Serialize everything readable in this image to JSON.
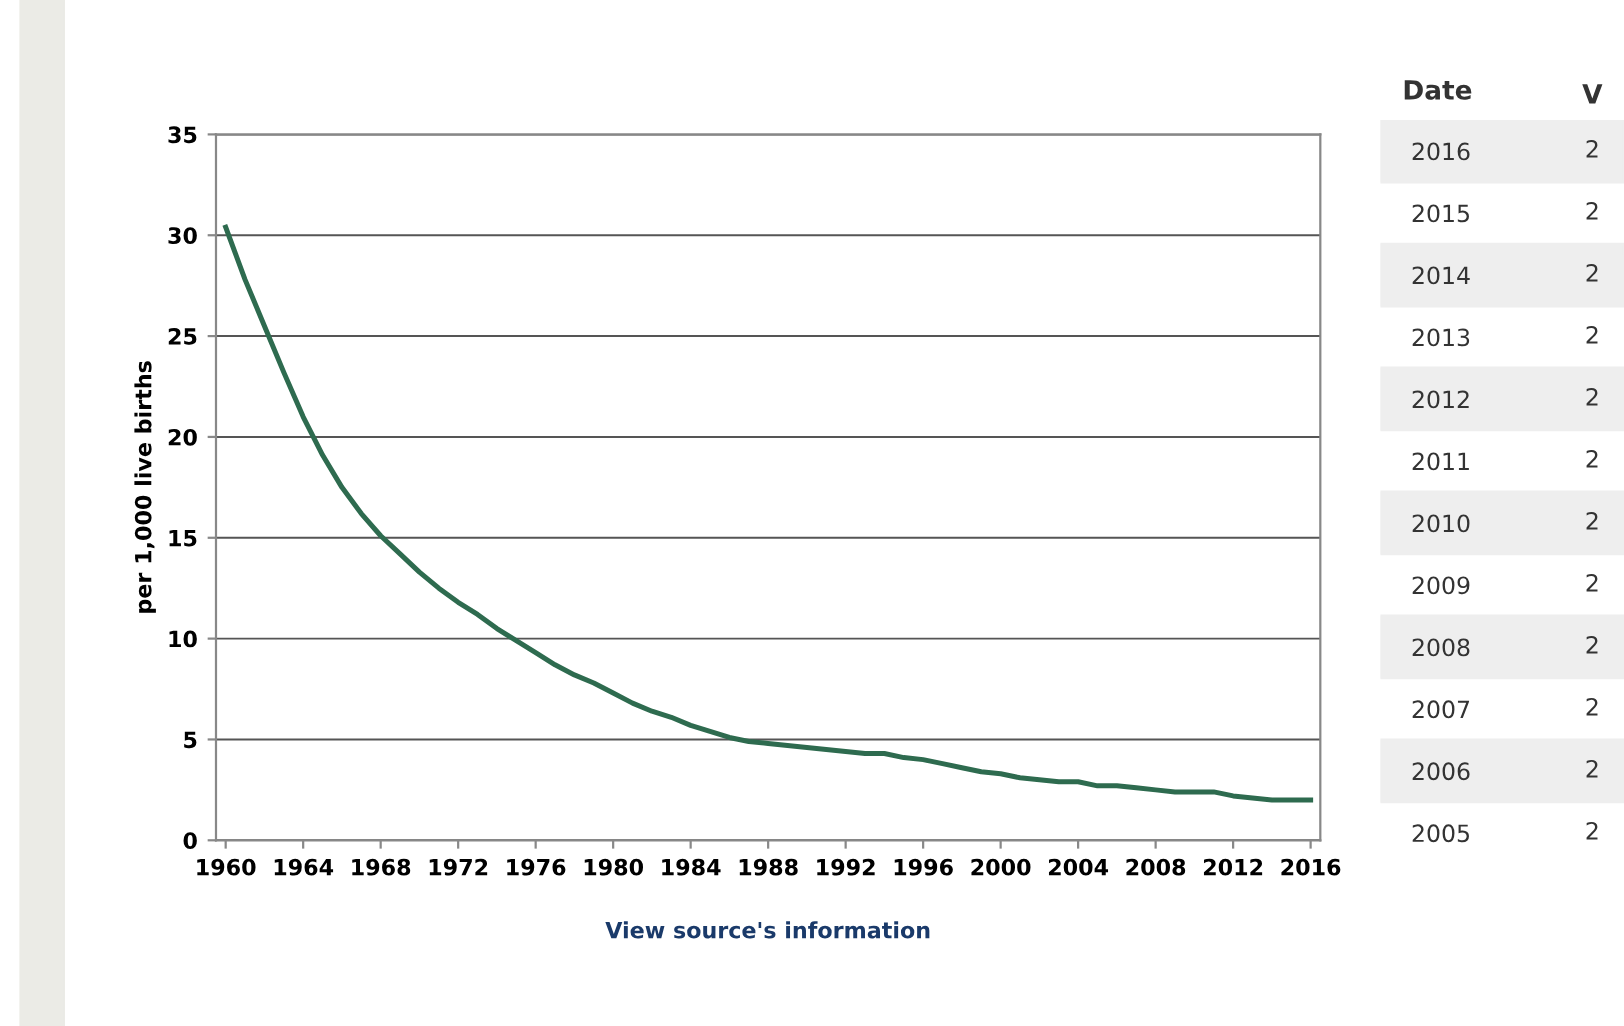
{
  "chart_data": [
    {
      "type": "line",
      "ylabel": "per 1,000 live births",
      "color": "#2e6b4f",
      "x": [
        1960,
        1961,
        1962,
        1963,
        1964,
        1965,
        1966,
        1967,
        1968,
        1969,
        1970,
        1971,
        1972,
        1973,
        1974,
        1975,
        1976,
        1977,
        1978,
        1979,
        1980,
        1981,
        1982,
        1983,
        1984,
        1985,
        1986,
        1987,
        1988,
        1989,
        1990,
        1991,
        1992,
        1993,
        1994,
        1995,
        1996,
        1997,
        1998,
        1999,
        2000,
        2001,
        2002,
        2003,
        2004,
        2005,
        2006,
        2007,
        2008,
        2009,
        2010,
        2011,
        2012,
        2013,
        2014,
        2015,
        2016
      ],
      "values": [
        30.4,
        27.8,
        25.5,
        23.2,
        21.0,
        19.1,
        17.5,
        16.2,
        15.1,
        14.2,
        13.3,
        12.5,
        11.8,
        11.2,
        10.5,
        9.9,
        9.3,
        8.7,
        8.2,
        7.8,
        7.3,
        6.8,
        6.4,
        6.1,
        5.7,
        5.4,
        5.1,
        4.9,
        4.8,
        4.7,
        4.6,
        4.5,
        4.4,
        4.3,
        4.3,
        4.1,
        4.0,
        3.8,
        3.6,
        3.4,
        3.3,
        3.1,
        3.0,
        2.9,
        2.9,
        2.7,
        2.7,
        2.6,
        2.5,
        2.4,
        2.4,
        2.4,
        2.2,
        2.1,
        2.0,
        2.0,
        2.0
      ],
      "xlim": [
        1959.5,
        2016.5
      ],
      "xticks": [
        1960,
        1964,
        1968,
        1972,
        1976,
        1980,
        1984,
        1988,
        1992,
        1996,
        2000,
        2004,
        2008,
        2012,
        2016
      ],
      "ylim": [
        0,
        35
      ],
      "yticks": [
        0,
        5,
        10,
        15,
        20,
        25,
        30,
        35
      ],
      "grid": "y",
      "marker": "none",
      "line_style": "solid",
      "annotations": [
        "View source's information"
      ]
    },
    {
      "type": "heatmap",
      "ylabel": "Date",
      "categories": [
        "V"
      ],
      "y_categories": [
        "2016",
        "2015",
        "2014",
        "2013",
        "2012",
        "2011",
        "2010",
        "2009",
        "2008",
        "2007",
        "2006",
        "2005"
      ],
      "cells": [
        [
          null
        ],
        [
          null
        ],
        [
          null
        ],
        [
          null
        ],
        [
          null
        ],
        [
          null
        ],
        [
          null
        ],
        [
          null
        ],
        [
          null
        ],
        [
          null
        ],
        [
          null
        ],
        [
          null
        ]
      ],
      "cell_labels": [
        [
          "2"
        ],
        [
          "2"
        ],
        [
          "2"
        ],
        [
          "2"
        ],
        [
          "2"
        ],
        [
          "2"
        ],
        [
          "2"
        ],
        [
          "2"
        ],
        [
          "2"
        ],
        [
          "2"
        ],
        [
          "2"
        ],
        [
          "2"
        ]
      ]
    }
  ]
}
